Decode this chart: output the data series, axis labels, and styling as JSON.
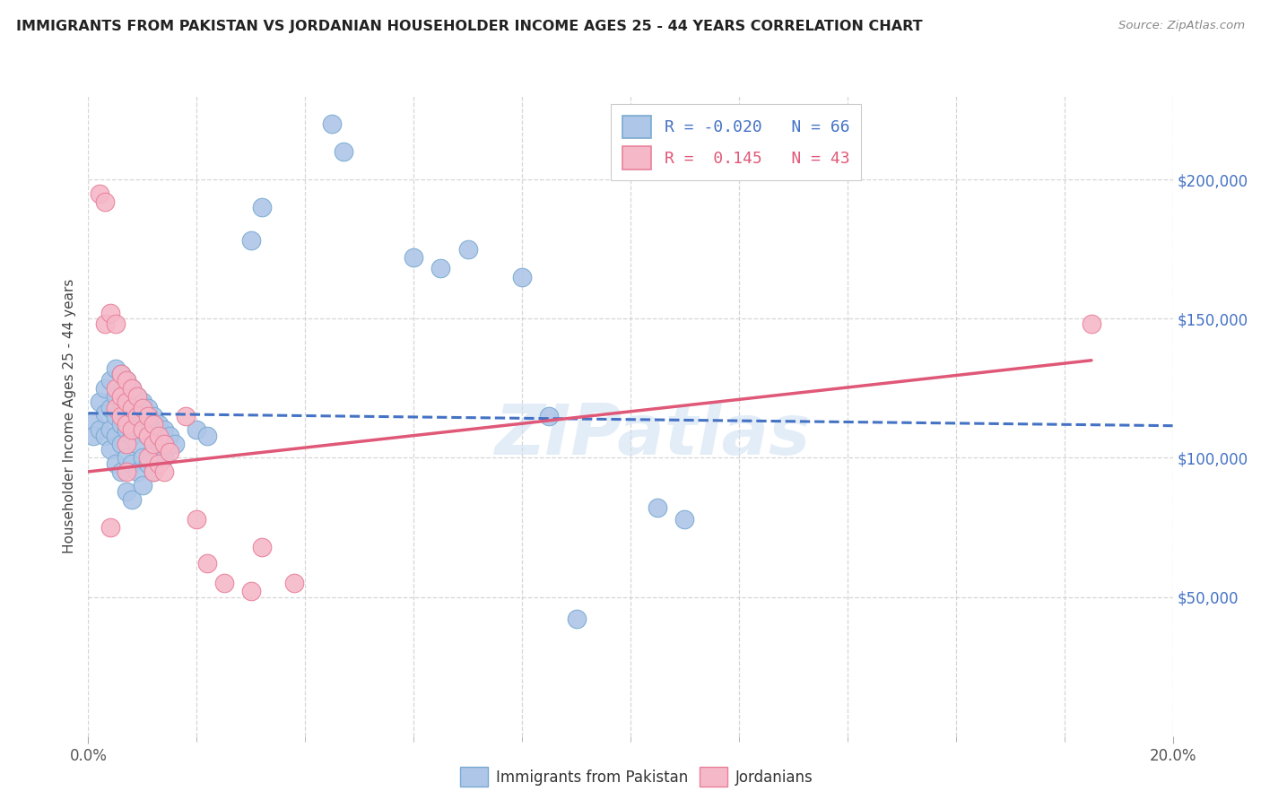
{
  "title": "IMMIGRANTS FROM PAKISTAN VS JORDANIAN HOUSEHOLDER INCOME AGES 25 - 44 YEARS CORRELATION CHART",
  "source": "Source: ZipAtlas.com",
  "xlabel_edge_left": "0.0%",
  "xlabel_edge_right": "20.0%",
  "ylabel": "Householder Income Ages 25 - 44 years",
  "r_pakistan": -0.02,
  "n_pakistan": 66,
  "r_jordanian": 0.145,
  "n_jordanian": 43,
  "legend_label_1": "Immigrants from Pakistan",
  "legend_label_2": "Jordanians",
  "watermark": "ZIPatlas",
  "pakistan_color": "#aec6e8",
  "jordanian_color": "#f5b8c8",
  "pakistan_edge_color": "#7aaad0",
  "jordanian_edge_color": "#e8809a",
  "pakistan_line_color": "#4472c4",
  "jordanian_line_color": "#e05878",
  "pakistan_scatter": [
    [
      0.001,
      113000
    ],
    [
      0.001,
      108000
    ],
    [
      0.002,
      120000
    ],
    [
      0.002,
      110000
    ],
    [
      0.003,
      125000
    ],
    [
      0.003,
      116000
    ],
    [
      0.003,
      108000
    ],
    [
      0.004,
      128000
    ],
    [
      0.004,
      118000
    ],
    [
      0.004,
      110000
    ],
    [
      0.004,
      103000
    ],
    [
      0.005,
      132000
    ],
    [
      0.005,
      122000
    ],
    [
      0.005,
      115000
    ],
    [
      0.005,
      108000
    ],
    [
      0.005,
      98000
    ],
    [
      0.006,
      130000
    ],
    [
      0.006,
      120000
    ],
    [
      0.006,
      112000
    ],
    [
      0.006,
      105000
    ],
    [
      0.006,
      95000
    ],
    [
      0.007,
      128000
    ],
    [
      0.007,
      118000
    ],
    [
      0.007,
      110000
    ],
    [
      0.007,
      100000
    ],
    [
      0.007,
      88000
    ],
    [
      0.008,
      125000
    ],
    [
      0.008,
      115000
    ],
    [
      0.008,
      108000
    ],
    [
      0.008,
      98000
    ],
    [
      0.008,
      85000
    ],
    [
      0.009,
      122000
    ],
    [
      0.009,
      112000
    ],
    [
      0.009,
      105000
    ],
    [
      0.009,
      95000
    ],
    [
      0.01,
      120000
    ],
    [
      0.01,
      110000
    ],
    [
      0.01,
      100000
    ],
    [
      0.01,
      90000
    ],
    [
      0.011,
      118000
    ],
    [
      0.011,
      108000
    ],
    [
      0.011,
      98000
    ],
    [
      0.012,
      115000
    ],
    [
      0.012,
      105000
    ],
    [
      0.012,
      95000
    ],
    [
      0.013,
      112000
    ],
    [
      0.013,
      102000
    ],
    [
      0.014,
      110000
    ],
    [
      0.014,
      100000
    ],
    [
      0.015,
      108000
    ],
    [
      0.016,
      105000
    ],
    [
      0.02,
      110000
    ],
    [
      0.022,
      108000
    ],
    [
      0.03,
      178000
    ],
    [
      0.032,
      190000
    ],
    [
      0.045,
      220000
    ],
    [
      0.047,
      210000
    ],
    [
      0.06,
      172000
    ],
    [
      0.065,
      168000
    ],
    [
      0.07,
      175000
    ],
    [
      0.08,
      165000
    ],
    [
      0.085,
      115000
    ],
    [
      0.09,
      42000
    ],
    [
      0.105,
      82000
    ],
    [
      0.11,
      78000
    ]
  ],
  "jordanian_scatter": [
    [
      0.002,
      195000
    ],
    [
      0.003,
      192000
    ],
    [
      0.003,
      148000
    ],
    [
      0.004,
      152000
    ],
    [
      0.004,
      75000
    ],
    [
      0.005,
      125000
    ],
    [
      0.005,
      118000
    ],
    [
      0.005,
      148000
    ],
    [
      0.006,
      130000
    ],
    [
      0.006,
      122000
    ],
    [
      0.006,
      115000
    ],
    [
      0.007,
      128000
    ],
    [
      0.007,
      120000
    ],
    [
      0.007,
      112000
    ],
    [
      0.007,
      105000
    ],
    [
      0.007,
      95000
    ],
    [
      0.008,
      125000
    ],
    [
      0.008,
      118000
    ],
    [
      0.008,
      110000
    ],
    [
      0.009,
      122000
    ],
    [
      0.009,
      115000
    ],
    [
      0.01,
      118000
    ],
    [
      0.01,
      110000
    ],
    [
      0.011,
      115000
    ],
    [
      0.011,
      108000
    ],
    [
      0.011,
      100000
    ],
    [
      0.012,
      112000
    ],
    [
      0.012,
      105000
    ],
    [
      0.012,
      95000
    ],
    [
      0.013,
      108000
    ],
    [
      0.013,
      98000
    ],
    [
      0.014,
      105000
    ],
    [
      0.014,
      95000
    ],
    [
      0.015,
      102000
    ],
    [
      0.018,
      115000
    ],
    [
      0.02,
      78000
    ],
    [
      0.022,
      62000
    ],
    [
      0.025,
      55000
    ],
    [
      0.03,
      52000
    ],
    [
      0.032,
      68000
    ],
    [
      0.038,
      55000
    ],
    [
      0.185,
      148000
    ]
  ],
  "xmin": 0.0,
  "xmax": 0.2,
  "ymin": 0,
  "ymax": 230000,
  "yticks": [
    50000,
    100000,
    150000,
    200000
  ],
  "ytick_labels": [
    "$50,000",
    "$100,000",
    "$150,000",
    "$200,000"
  ],
  "pakistan_line": [
    [
      0.0,
      0.2
    ],
    [
      116000,
      111500
    ]
  ],
  "jordanian_line": [
    [
      0.0,
      0.185
    ],
    [
      95000,
      135000
    ]
  ]
}
